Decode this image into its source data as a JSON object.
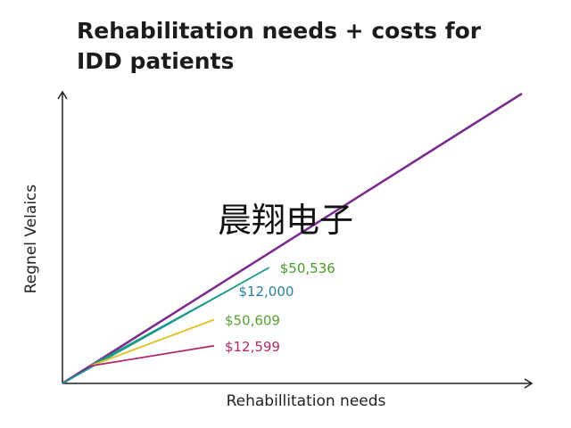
{
  "chart_data": {
    "type": "line",
    "title": "Rehabilitation needs + costs for\nIDD patients",
    "xlabel": "Rehabillitation needs",
    "ylabel": "Regnel Velaics",
    "watermark": "晨翔电子",
    "grid": false,
    "legend": "none",
    "xlim": [
      0,
      100
    ],
    "ylim": [
      0,
      100
    ],
    "series": [
      {
        "color": "#7b2d8e",
        "x": [
          0,
          100
        ],
        "y": [
          0,
          100
        ]
      },
      {
        "color": "#1a9a8a",
        "label": "$50,536",
        "label_color": "#4a9a2a",
        "x": [
          0,
          45
        ],
        "y": [
          0,
          40
        ]
      },
      {
        "color": "#1a9a8a",
        "label": "$12,000",
        "label_color": "#2a7fa0",
        "x": [
          6,
          36
        ],
        "y": [
          6,
          32
        ]
      },
      {
        "color": "#e0c020",
        "label": "$50,609",
        "label_color": "#5aa030",
        "x": [
          6,
          33
        ],
        "y": [
          6,
          22
        ]
      },
      {
        "color": "#b02a6a",
        "label": "$12,599",
        "label_color": "#b02a6a",
        "x": [
          6,
          33
        ],
        "y": [
          6,
          13
        ]
      }
    ]
  }
}
